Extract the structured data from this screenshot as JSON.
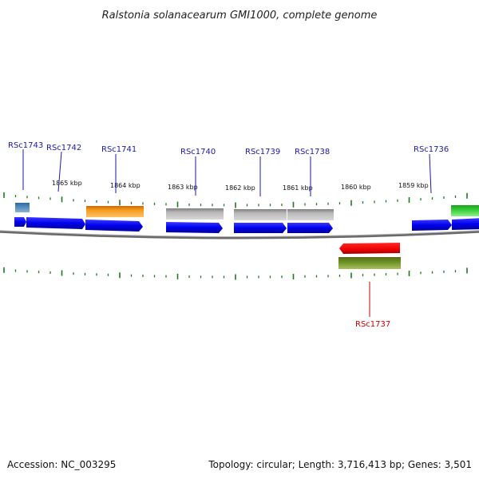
{
  "header": {
    "title": "Ralstonia solanacearum GMI1000, complete genome"
  },
  "footer": {
    "accession": "Accession: NC_003295",
    "summary": "Topology: circular; Length: 3,716,413 bp; Genes: 3,501"
  },
  "colors": {
    "forward_cds": "#0000ee",
    "label_forward": "#1a1aaa",
    "label_reverse": "#cc0000",
    "tick": "#1f7a1f",
    "backbone": "#777777",
    "orange_feature": "#f08a00",
    "gray_feature": "#b0b0b0",
    "steelblue_feature": "#4682b4",
    "green_feature": "#33cc33",
    "red_feature": "#ee0000",
    "olive_feature": "#6b8e23"
  },
  "kbp_labels": [
    "1865 kbp",
    "1864 kbp",
    "1863 kbp",
    "1862 kbp",
    "1861 kbp",
    "1860 kbp",
    "1859 kbp"
  ],
  "gene_labels": [
    {
      "name": "RSc1743",
      "strand": "forward"
    },
    {
      "name": "RSc1742",
      "strand": "forward"
    },
    {
      "name": "RSc1741",
      "strand": "forward"
    },
    {
      "name": "RSc1740",
      "strand": "forward"
    },
    {
      "name": "RSc1739",
      "strand": "forward"
    },
    {
      "name": "RSc1738",
      "strand": "forward"
    },
    {
      "name": "RSc1737",
      "strand": "reverse"
    },
    {
      "name": "RSc1736",
      "strand": "forward"
    }
  ],
  "features": [
    {
      "name": "steelblue-feature",
      "color": "steelblue_feature"
    },
    {
      "name": "orange-feature",
      "color": "orange_feature"
    },
    {
      "name": "gray-feature",
      "color": "gray_feature"
    },
    {
      "name": "green-feature",
      "color": "green_feature"
    },
    {
      "name": "red-feature",
      "color": "red_feature"
    },
    {
      "name": "olive-feature",
      "color": "olive_feature"
    }
  ]
}
